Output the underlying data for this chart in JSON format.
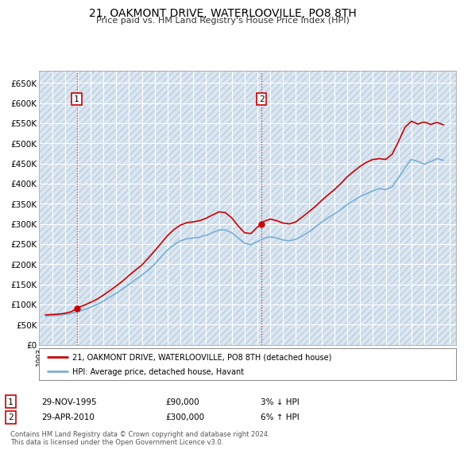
{
  "title": "21, OAKMONT DRIVE, WATERLOOVILLE, PO8 8TH",
  "subtitle": "Price paid vs. HM Land Registry's House Price Index (HPI)",
  "ylim": [
    0,
    680000
  ],
  "yticks": [
    0,
    50000,
    100000,
    150000,
    200000,
    250000,
    300000,
    350000,
    400000,
    450000,
    500000,
    550000,
    600000,
    650000
  ],
  "ytick_labels": [
    "£0",
    "£50K",
    "£100K",
    "£150K",
    "£200K",
    "£250K",
    "£300K",
    "£350K",
    "£400K",
    "£450K",
    "£500K",
    "£550K",
    "£600K",
    "£650K"
  ],
  "background_color": "#dce6f1",
  "legend_label_red": "21, OAKMONT DRIVE, WATERLOOVILLE, PO8 8TH (detached house)",
  "legend_label_blue": "HPI: Average price, detached house, Havant",
  "footnote": "Contains HM Land Registry data © Crown copyright and database right 2024.\nThis data is licensed under the Open Government Licence v3.0.",
  "sale1_label": "1",
  "sale1_date": "29-NOV-1995",
  "sale1_price": "£90,000",
  "sale1_hpi": "3% ↓ HPI",
  "sale1_year": 1995.92,
  "sale1_value": 90000,
  "sale2_label": "2",
  "sale2_date": "29-APR-2010",
  "sale2_price": "£300,000",
  "sale2_hpi": "6% ↑ HPI",
  "sale2_year": 2010.33,
  "sale2_value": 300000,
  "red_color": "#cc0000",
  "blue_color": "#7bafd4",
  "marker_color": "#cc0000",
  "hpi_years": [
    1993.5,
    1994.0,
    1994.5,
    1995.0,
    1995.5,
    1996.0,
    1996.5,
    1997.0,
    1997.5,
    1998.0,
    1998.5,
    1999.0,
    1999.5,
    2000.0,
    2000.5,
    2001.0,
    2001.5,
    2002.0,
    2002.5,
    2003.0,
    2003.5,
    2004.0,
    2004.5,
    2005.0,
    2005.5,
    2006.0,
    2006.5,
    2007.0,
    2007.5,
    2008.0,
    2008.5,
    2009.0,
    2009.5,
    2010.0,
    2010.5,
    2011.0,
    2011.5,
    2012.0,
    2012.5,
    2013.0,
    2013.5,
    2014.0,
    2014.5,
    2015.0,
    2015.5,
    2016.0,
    2016.5,
    2017.0,
    2017.5,
    2018.0,
    2018.5,
    2019.0,
    2019.5,
    2020.0,
    2020.5,
    2021.0,
    2021.5,
    2022.0,
    2022.5,
    2023.0,
    2023.5,
    2024.0,
    2024.5
  ],
  "hpi_values": [
    71000,
    72000,
    73000,
    75000,
    78000,
    82000,
    87000,
    93000,
    100000,
    108000,
    118000,
    128000,
    138000,
    150000,
    162000,
    173000,
    185000,
    200000,
    218000,
    235000,
    248000,
    258000,
    263000,
    265000,
    267000,
    272000,
    278000,
    285000,
    285000,
    278000,
    265000,
    252000,
    248000,
    256000,
    264000,
    268000,
    265000,
    260000,
    258000,
    262000,
    270000,
    280000,
    292000,
    304000,
    315000,
    325000,
    335000,
    348000,
    358000,
    368000,
    375000,
    382000,
    388000,
    385000,
    392000,
    415000,
    440000,
    460000,
    455000,
    448000,
    455000,
    462000,
    458000
  ],
  "sale_years": [
    1993.5,
    1994.0,
    1994.5,
    1995.0,
    1995.5,
    1995.92,
    1996.0,
    1996.5,
    1997.0,
    1997.5,
    1998.0,
    1998.5,
    1999.0,
    1999.5,
    2000.0,
    2000.5,
    2001.0,
    2001.5,
    2002.0,
    2002.5,
    2003.0,
    2003.5,
    2004.0,
    2004.5,
    2005.0,
    2005.5,
    2006.0,
    2006.5,
    2007.0,
    2007.5,
    2008.0,
    2008.5,
    2009.0,
    2009.5,
    2010.0,
    2010.33,
    2010.5,
    2011.0,
    2011.5,
    2012.0,
    2012.5,
    2013.0,
    2013.5,
    2014.0,
    2014.5,
    2015.0,
    2015.5,
    2016.0,
    2016.5,
    2017.0,
    2017.5,
    2018.0,
    2018.5,
    2019.0,
    2019.5,
    2020.0,
    2020.5,
    2021.0,
    2021.5,
    2022.0,
    2022.5,
    2023.0,
    2023.5,
    2024.0,
    2024.5
  ],
  "sale_values": [
    74000,
    75000,
    76000,
    78000,
    82000,
    90000,
    92000,
    98000,
    105000,
    113000,
    123000,
    134000,
    146000,
    158000,
    172000,
    185000,
    198000,
    215000,
    233000,
    252000,
    271000,
    286000,
    297000,
    303000,
    305000,
    308000,
    314000,
    322000,
    330000,
    328000,
    315000,
    295000,
    278000,
    276000,
    292000,
    300000,
    306000,
    312000,
    308000,
    302000,
    300000,
    305000,
    317000,
    330000,
    343000,
    358000,
    372000,
    385000,
    400000,
    417000,
    430000,
    443000,
    453000,
    460000,
    462000,
    460000,
    473000,
    505000,
    540000,
    555000,
    548000,
    553000,
    547000,
    552000,
    546000
  ]
}
